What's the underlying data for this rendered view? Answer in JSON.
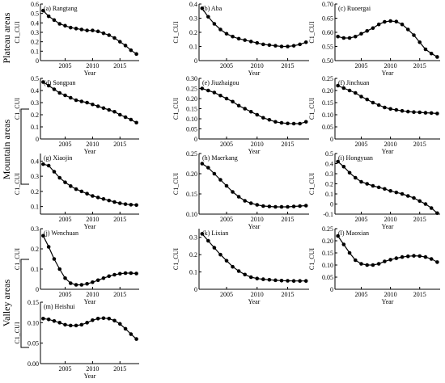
{
  "figure": {
    "group_labels": [
      "Plateau areas",
      "Mountain areas",
      "Valley areas"
    ]
  },
  "chart_data": [
    {
      "type": "line",
      "title": "(a) Rangtang",
      "xlabel": "Year",
      "ylabel": "C1_CUI",
      "x": [
        2001,
        2002,
        2003,
        2004,
        2005,
        2006,
        2007,
        2008,
        2009,
        2010,
        2011,
        2012,
        2013,
        2014,
        2015,
        2016,
        2017,
        2018
      ],
      "values": [
        0.53,
        0.47,
        0.43,
        0.39,
        0.37,
        0.35,
        0.34,
        0.33,
        0.32,
        0.32,
        0.31,
        0.29,
        0.27,
        0.24,
        0.2,
        0.16,
        0.11,
        0.07
      ],
      "ylim": [
        0,
        0.6
      ],
      "yticks": [
        0,
        0.1,
        0.2,
        0.3,
        0.4,
        0.5,
        0.6
      ],
      "ytick_labels": [
        "0",
        "0.1",
        "0.2",
        "0.3",
        "0.4",
        "0.5",
        "0.6"
      ],
      "xticks": [
        2005,
        2010,
        2015
      ],
      "xtick_labels": [
        "2005",
        "2010",
        "2015"
      ]
    },
    {
      "type": "line",
      "title": "(b) Aba",
      "xlabel": "Year",
      "ylabel": "C1_CUI",
      "x": [
        2001,
        2002,
        2003,
        2004,
        2005,
        2006,
        2007,
        2008,
        2009,
        2010,
        2011,
        2012,
        2013,
        2014,
        2015,
        2016,
        2017,
        2018
      ],
      "values": [
        0.37,
        0.31,
        0.26,
        0.22,
        0.19,
        0.17,
        0.155,
        0.145,
        0.135,
        0.125,
        0.115,
        0.11,
        0.105,
        0.1,
        0.1,
        0.105,
        0.115,
        0.13
      ],
      "ylim": [
        0,
        0.4
      ],
      "yticks": [
        0,
        0.1,
        0.2,
        0.3,
        0.4
      ],
      "ytick_labels": [
        "0",
        "0.1",
        "0.2",
        "0.3",
        "0.4"
      ],
      "xticks": [
        2005,
        2010,
        2015
      ],
      "xtick_labels": [
        "2005",
        "2010",
        "2015"
      ]
    },
    {
      "type": "line",
      "title": "(c) Ruoergai",
      "xlabel": "Year",
      "ylabel": "C1_CUI",
      "x": [
        2001,
        2002,
        2003,
        2004,
        2005,
        2006,
        2007,
        2008,
        2009,
        2010,
        2011,
        2012,
        2013,
        2014,
        2015,
        2016,
        2017,
        2018
      ],
      "values": [
        0.585,
        0.58,
        0.58,
        0.585,
        0.595,
        0.605,
        0.615,
        0.628,
        0.637,
        0.64,
        0.638,
        0.628,
        0.61,
        0.59,
        0.565,
        0.54,
        0.525,
        0.513
      ],
      "ylim": [
        0.5,
        0.7
      ],
      "yticks": [
        0.5,
        0.55,
        0.6,
        0.65,
        0.7
      ],
      "ytick_labels": [
        "0.50",
        "0.55",
        "0.60",
        "0.65",
        "0.70"
      ],
      "xticks": [
        2005,
        2010,
        2015
      ],
      "xtick_labels": [
        "2005",
        "2010",
        "2015"
      ]
    },
    {
      "type": "line",
      "title": "(d) Songpan",
      "xlabel": "Year",
      "ylabel": "C1_CUI",
      "x": [
        2001,
        2002,
        2003,
        2004,
        2005,
        2006,
        2007,
        2008,
        2009,
        2010,
        2011,
        2012,
        2013,
        2014,
        2015,
        2016,
        2017,
        2018
      ],
      "values": [
        0.47,
        0.44,
        0.41,
        0.38,
        0.36,
        0.34,
        0.32,
        0.31,
        0.3,
        0.285,
        0.27,
        0.255,
        0.24,
        0.225,
        0.2,
        0.18,
        0.16,
        0.135
      ],
      "ylim": [
        0,
        0.5
      ],
      "yticks": [
        0,
        0.1,
        0.2,
        0.3,
        0.4,
        0.5
      ],
      "ytick_labels": [
        "0",
        "0.1",
        "0.2",
        "0.3",
        "0.4",
        "0.5"
      ],
      "xticks": [
        2005,
        2010,
        2015
      ],
      "xtick_labels": [
        "2005",
        "2010",
        "2015"
      ]
    },
    {
      "type": "line",
      "title": "(e) Jiuzhaigou",
      "xlabel": "Year",
      "ylabel": "C1_CUI",
      "x": [
        2001,
        2002,
        2003,
        2004,
        2005,
        2006,
        2007,
        2008,
        2009,
        2010,
        2011,
        2012,
        2013,
        2014,
        2015,
        2016,
        2017,
        2018
      ],
      "values": [
        0.25,
        0.24,
        0.23,
        0.215,
        0.2,
        0.185,
        0.165,
        0.15,
        0.135,
        0.12,
        0.105,
        0.095,
        0.085,
        0.08,
        0.077,
        0.076,
        0.076,
        0.085
      ],
      "ylim": [
        0,
        0.3
      ],
      "yticks": [
        0,
        0.05,
        0.1,
        0.15,
        0.2,
        0.25,
        0.3
      ],
      "ytick_labels": [
        "0",
        "0.05",
        "0.10",
        "0.15",
        "0.20",
        "0.25",
        "0.30"
      ],
      "xticks": [
        2005,
        2010,
        2015
      ],
      "xtick_labels": [
        "2005",
        "2010",
        "2015"
      ]
    },
    {
      "type": "line",
      "title": "(f) Jinchuan",
      "xlabel": "Year",
      "ylabel": "C1_CUI",
      "x": [
        2001,
        2002,
        2003,
        2004,
        2005,
        2006,
        2007,
        2008,
        2009,
        2010,
        2011,
        2012,
        2013,
        2014,
        2015,
        2016,
        2017,
        2018
      ],
      "values": [
        0.22,
        0.21,
        0.2,
        0.19,
        0.175,
        0.163,
        0.15,
        0.14,
        0.13,
        0.124,
        0.12,
        0.116,
        0.113,
        0.111,
        0.11,
        0.108,
        0.107,
        0.105
      ],
      "ylim": [
        0,
        0.25
      ],
      "yticks": [
        0,
        0.05,
        0.1,
        0.15,
        0.2,
        0.25
      ],
      "ytick_labels": [
        "0",
        "0.05",
        "0.10",
        "0.15",
        "0.20",
        "0.25"
      ],
      "xticks": [
        2005,
        2010,
        2015
      ],
      "xtick_labels": [
        "2005",
        "2010",
        "2015"
      ]
    },
    {
      "type": "line",
      "title": "(g) Xiaojin",
      "xlabel": "Year",
      "ylabel": "C1_CUI",
      "x": [
        2001,
        2002,
        2003,
        2004,
        2005,
        2006,
        2007,
        2008,
        2009,
        2010,
        2011,
        2012,
        2013,
        2014,
        2015,
        2016,
        2017,
        2018
      ],
      "values": [
        0.38,
        0.37,
        0.33,
        0.29,
        0.26,
        0.235,
        0.215,
        0.2,
        0.185,
        0.17,
        0.16,
        0.15,
        0.14,
        0.13,
        0.122,
        0.116,
        0.112,
        0.11
      ],
      "ylim": [
        0.05,
        0.45
      ],
      "yticks": [
        0.1,
        0.2,
        0.3,
        0.4
      ],
      "ytick_labels": [
        "0.1",
        "0.2",
        "0.3",
        "0.4"
      ],
      "xticks": [
        2005,
        2010,
        2015
      ],
      "xtick_labels": [
        "2005",
        "2010",
        "2015"
      ]
    },
    {
      "type": "line",
      "title": "(h) Maerkang",
      "xlabel": "Year",
      "ylabel": "C1_CUI",
      "x": [
        2001,
        2002,
        2003,
        2004,
        2005,
        2006,
        2007,
        2008,
        2009,
        2010,
        2011,
        2012,
        2013,
        2014,
        2015,
        2016,
        2017,
        2018
      ],
      "values": [
        0.225,
        0.215,
        0.2,
        0.185,
        0.17,
        0.155,
        0.143,
        0.133,
        0.127,
        0.123,
        0.12,
        0.119,
        0.118,
        0.118,
        0.118,
        0.119,
        0.12,
        0.121
      ],
      "ylim": [
        0.1,
        0.25
      ],
      "yticks": [
        0.1,
        0.15,
        0.2,
        0.25
      ],
      "ytick_labels": [
        "0.10",
        "0.15",
        "0.20",
        "0.25"
      ],
      "xticks": [
        2005,
        2010,
        2015
      ],
      "xtick_labels": [
        "2005",
        "2010",
        "2015"
      ]
    },
    {
      "type": "line",
      "title": "(i) Hongyuan",
      "xlabel": "Year",
      "ylabel": "C1_CUI",
      "x": [
        2001,
        2002,
        2003,
        2004,
        2005,
        2006,
        2007,
        2008,
        2009,
        2010,
        2011,
        2012,
        2013,
        2014,
        2015,
        2016,
        2017,
        2018
      ],
      "values": [
        0.42,
        0.37,
        0.31,
        0.26,
        0.22,
        0.2,
        0.18,
        0.165,
        0.15,
        0.13,
        0.115,
        0.1,
        0.08,
        0.06,
        0.03,
        0.0,
        -0.04,
        -0.09
      ],
      "ylim": [
        -0.1,
        0.5
      ],
      "yticks": [
        -0.1,
        0,
        0.1,
        0.2,
        0.3,
        0.4,
        0.5
      ],
      "ytick_labels": [
        "-0.1",
        "0",
        "0.1",
        "0.2",
        "0.3",
        "0.4",
        "0.5"
      ],
      "xticks": [
        2005,
        2010,
        2015
      ],
      "xtick_labels": [
        "2005",
        "2010",
        "2015"
      ]
    },
    {
      "type": "line",
      "title": "(j) Wenchuan",
      "xlabel": "Year",
      "ylabel": "C1_CUI",
      "x": [
        2001,
        2002,
        2003,
        2004,
        2005,
        2006,
        2007,
        2008,
        2009,
        2010,
        2011,
        2012,
        2013,
        2014,
        2015,
        2016,
        2017,
        2018
      ],
      "values": [
        0.265,
        0.21,
        0.15,
        0.1,
        0.055,
        0.03,
        0.022,
        0.022,
        0.027,
        0.035,
        0.045,
        0.055,
        0.065,
        0.072,
        0.077,
        0.08,
        0.08,
        0.078
      ],
      "ylim": [
        0,
        0.3
      ],
      "yticks": [
        0,
        0.1,
        0.2,
        0.3
      ],
      "ytick_labels": [
        "0",
        "0.1",
        "0.2",
        "0.3"
      ],
      "xticks": [
        2005,
        2010,
        2015
      ],
      "xtick_labels": [
        "2005",
        "2010",
        "2015"
      ]
    },
    {
      "type": "line",
      "title": "(k) Lixian",
      "xlabel": "Year",
      "ylabel": "C1_CUI",
      "x": [
        2001,
        2002,
        2003,
        2004,
        2005,
        2006,
        2007,
        2008,
        2009,
        2010,
        2011,
        2012,
        2013,
        2014,
        2015,
        2016,
        2017,
        2018
      ],
      "values": [
        0.32,
        0.28,
        0.24,
        0.2,
        0.165,
        0.13,
        0.105,
        0.085,
        0.07,
        0.062,
        0.058,
        0.055,
        0.052,
        0.05,
        0.049,
        0.048,
        0.048,
        0.048
      ],
      "ylim": [
        0,
        0.35
      ],
      "yticks": [
        0,
        0.1,
        0.2,
        0.3
      ],
      "ytick_labels": [
        "0",
        "0.1",
        "0.2",
        "0.3"
      ],
      "xticks": [
        2005,
        2010,
        2015
      ],
      "xtick_labels": [
        "2005",
        "2010",
        "2015"
      ]
    },
    {
      "type": "line",
      "title": "(l) Maoxian",
      "xlabel": "Year",
      "ylabel": "C1_CUI",
      "x": [
        2001,
        2002,
        2003,
        2004,
        2005,
        2006,
        2007,
        2008,
        2009,
        2010,
        2011,
        2012,
        2013,
        2014,
        2015,
        2016,
        2017,
        2018
      ],
      "values": [
        0.22,
        0.185,
        0.15,
        0.12,
        0.105,
        0.1,
        0.1,
        0.105,
        0.115,
        0.122,
        0.128,
        0.133,
        0.136,
        0.138,
        0.137,
        0.133,
        0.125,
        0.112
      ],
      "ylim": [
        0,
        0.25
      ],
      "yticks": [
        0,
        0.05,
        0.1,
        0.15,
        0.2,
        0.25
      ],
      "ytick_labels": [
        "0",
        "0.05",
        "0.10",
        "0.15",
        "0.20",
        "0.25"
      ],
      "xticks": [
        2005,
        2010,
        2015
      ],
      "xtick_labels": [
        "2005",
        "2010",
        "2015"
      ]
    },
    {
      "type": "line",
      "title": "(m) Heishui",
      "xlabel": "Year",
      "ylabel": "C1_CUI",
      "x": [
        2001,
        2002,
        2003,
        2004,
        2005,
        2006,
        2007,
        2008,
        2009,
        2010,
        2011,
        2012,
        2013,
        2014,
        2015,
        2016,
        2017,
        2018
      ],
      "values": [
        0.11,
        0.108,
        0.104,
        0.1,
        0.095,
        0.093,
        0.093,
        0.095,
        0.1,
        0.106,
        0.11,
        0.111,
        0.11,
        0.105,
        0.097,
        0.085,
        0.072,
        0.06
      ],
      "ylim": [
        0,
        0.15
      ],
      "yticks": [
        0,
        0.05,
        0.1,
        0.15
      ],
      "ytick_labels": [
        "0.00",
        "0.05",
        "0.10",
        "0.15"
      ],
      "xticks": [
        2005,
        2010,
        2015
      ],
      "xtick_labels": [
        "2005",
        "2010",
        "2015"
      ]
    }
  ]
}
